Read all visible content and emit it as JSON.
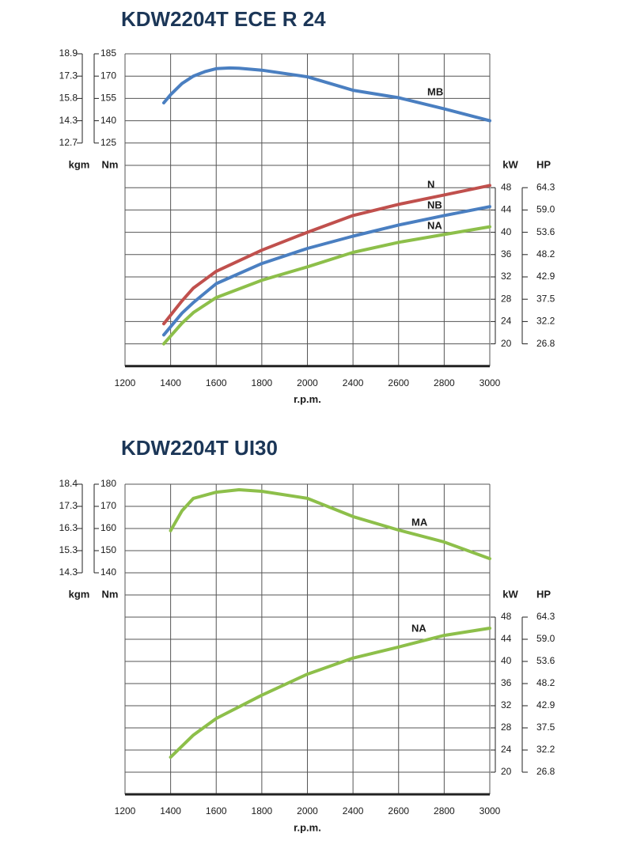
{
  "chart_data": [
    {
      "type": "line",
      "title": "KDW2204T ECE R 24",
      "xlabel": "r.p.m.",
      "xticks": [
        1200,
        1400,
        1600,
        1800,
        2000,
        2400,
        2600,
        2800,
        3000
      ],
      "ylabel": "Nm",
      "ylim": [
        125,
        185
      ],
      "yticks": [
        125,
        140,
        155,
        170,
        185
      ],
      "y_alt_label": "kgm",
      "y_alt_ticks": [
        12.7,
        14.3,
        15.8,
        17.3,
        18.9
      ],
      "y2label": "kW",
      "y2lim": [
        20,
        48
      ],
      "y2ticks": [
        20,
        24,
        28,
        32,
        36,
        40,
        44,
        48
      ],
      "y3label": "HP",
      "y3ticks": [
        26.8,
        32.2,
        37.5,
        42.9,
        48.2,
        53.6,
        {
          "value": 59,
          "label": "59.0"
        },
        64.3
      ],
      "grid": true,
      "series": [
        {
          "name": "MB",
          "color": "#4a7fc1",
          "axis": "y",
          "x": [
            1370,
            1400,
            1450,
            1500,
            1550,
            1600,
            1660,
            1700,
            1800,
            2000,
            2400,
            2600,
            2800,
            3000
          ],
          "values": [
            152,
            157.5,
            165,
            170,
            173,
            175,
            175.5,
            175.3,
            174,
            169.5,
            160.5,
            155.5,
            148,
            140
          ]
        },
        {
          "name": "N",
          "color": "#c0504d",
          "axis": "y2",
          "x": [
            1370,
            1450,
            1500,
            1600,
            1800,
            2000,
            2400,
            2600,
            2800,
            3000
          ],
          "values": [
            23.6,
            27.7,
            30,
            33,
            36.8,
            40,
            43,
            45,
            46.7,
            48.4
          ]
        },
        {
          "name": "NB",
          "color": "#4a7fc1",
          "axis": "y2",
          "x": [
            1370,
            1450,
            1500,
            1600,
            1800,
            2000,
            2400,
            2600,
            2800,
            3000
          ],
          "values": [
            21.6,
            25.5,
            27.4,
            30.8,
            34.4,
            37.1,
            39.3,
            41.3,
            43,
            44.6
          ]
        },
        {
          "name": "NA",
          "color": "#8dbf4a",
          "axis": "y2",
          "x": [
            1370,
            1450,
            1500,
            1600,
            1800,
            2000,
            2400,
            2600,
            2800,
            3000
          ],
          "values": [
            20,
            23.7,
            25.6,
            28.3,
            31.4,
            33.8,
            36.4,
            38.2,
            39.6,
            41
          ]
        }
      ]
    },
    {
      "type": "line",
      "title": "KDW2204T UI30",
      "xlabel": "r.p.m.",
      "xticks": [
        1200,
        1400,
        1600,
        1800,
        2000,
        2400,
        2600,
        2800,
        3000
      ],
      "ylabel": "Nm",
      "ylim": [
        140,
        180
      ],
      "yticks": [
        140,
        150,
        160,
        170,
        180
      ],
      "y_alt_label": "kgm",
      "y_alt_ticks": [
        14.3,
        15.3,
        16.3,
        17.3,
        18.4
      ],
      "y2label": "kW",
      "y2lim": [
        20,
        48
      ],
      "y2ticks": [
        20,
        24,
        28,
        32,
        36,
        40,
        44,
        48
      ],
      "y3label": "HP",
      "y3ticks": [
        26.8,
        32.2,
        37.5,
        42.9,
        48.2,
        53.6,
        {
          "value": 59,
          "label": "59.0"
        },
        64.3
      ],
      "grid": true,
      "series": [
        {
          "name": "MA",
          "color": "#8dbf4a",
          "axis": "y",
          "x": [
            1400,
            1450,
            1500,
            1600,
            1700,
            1800,
            2000,
            2400,
            2600,
            2800,
            3000
          ],
          "values": [
            159,
            168,
            173.6,
            176.4,
            177.5,
            176.8,
            173.6,
            165.4,
            159.3,
            153.9,
            146.4
          ]
        },
        {
          "name": "NA",
          "color": "#8dbf4a",
          "axis": "y2",
          "x": [
            1400,
            1500,
            1600,
            1800,
            2000,
            2400,
            2600,
            2800,
            3000
          ],
          "values": [
            22.7,
            26.7,
            29.7,
            33.9,
            37.7,
            40.6,
            42.6,
            44.7,
            46
          ]
        }
      ]
    }
  ]
}
